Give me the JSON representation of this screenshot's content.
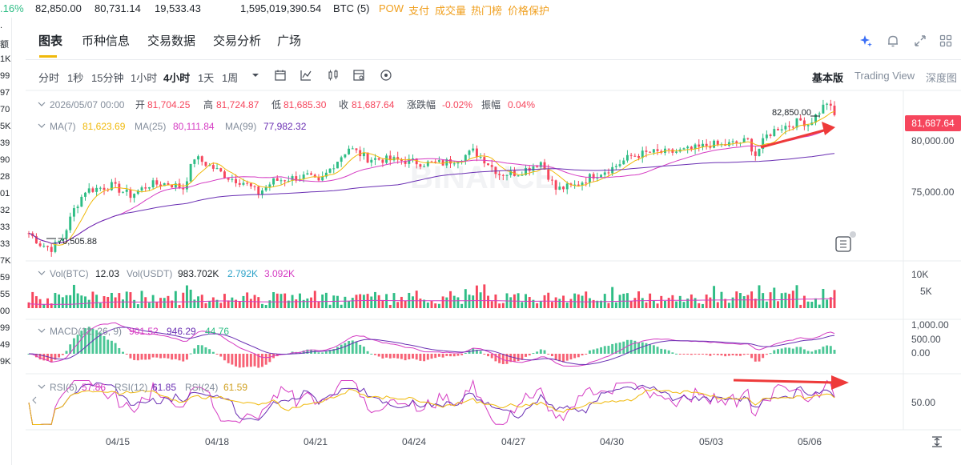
{
  "ticker": {
    "change_pct": ".16%",
    "high": "82,850.00",
    "low": "80,731.14",
    "volume_btc": "19,533.43",
    "volume_usdt": "1,595,019,390.54",
    "network": "BTC (5)",
    "tags": [
      "POW",
      "支付",
      "成交量",
      "热门榜",
      "价格保护"
    ],
    "tag_color": "#f0a020"
  },
  "left_strip": [
    ".",
    "额",
    "1K",
    "99",
    "97",
    "70",
    "5K",
    "39",
    "90",
    "28",
    "01",
    "32",
    "33",
    "33",
    "7K",
    "59",
    "55",
    "00",
    "99",
    "49",
    "9K"
  ],
  "tabs": [
    {
      "label": "图表",
      "active": true
    },
    {
      "label": "币种信息",
      "active": false
    },
    {
      "label": "交易数据",
      "active": false
    },
    {
      "label": "交易分析",
      "active": false
    },
    {
      "label": "广场",
      "active": false
    }
  ],
  "tab_icons": [
    "sparkle-icon",
    "bell-icon",
    "expand-icon",
    "grid-icon"
  ],
  "intervals": [
    {
      "label": "分时",
      "selected": false
    },
    {
      "label": "1秒",
      "selected": false
    },
    {
      "label": "15分钟",
      "selected": false
    },
    {
      "label": "1小时",
      "selected": false
    },
    {
      "label": "4小时",
      "selected": true
    },
    {
      "label": "1天",
      "selected": false
    },
    {
      "label": "1周",
      "selected": false
    }
  ],
  "toolbar_icons": [
    "dropdown-icon",
    "calendar-icon",
    "indicator-icon",
    "candle-icon",
    "layout-icon",
    "settings-icon"
  ],
  "views": {
    "basic": "基本版",
    "tradingview": "Trading View",
    "depth": "深度图"
  },
  "ohlc": {
    "date": "2026/05/07 00:00",
    "open_label": "开",
    "open": "81,704.25",
    "high_label": "高",
    "high": "81,724.87",
    "low_label": "低",
    "low": "81,685.30",
    "close_label": "收",
    "close": "81,687.64",
    "change_label": "涨跌幅",
    "change": "-0.02%",
    "amp_label": "振幅",
    "amp": "0.04%"
  },
  "ma": {
    "ma7_label": "MA(7)",
    "ma7": "81,623.69",
    "ma25_label": "MA(25)",
    "ma25": "80,111.84",
    "ma99_label": "MA(99)",
    "ma99": "77,982.32"
  },
  "vol": {
    "btc_label": "Vol(BTC)",
    "btc": "12.03",
    "usdt_label": "Vol(USDT)",
    "usdt": "983.702K",
    "v1": "2.792K",
    "v2": "3.092K"
  },
  "macd": {
    "label": "MACD(12, 26, 9)",
    "v1": "901.52",
    "v2": "946.29",
    "v3": "44.76"
  },
  "rsi": {
    "rsi6_label": "RSI(6)",
    "rsi6": "57.86",
    "rsi12_label": "RSI(12)",
    "rsi12": "61.85",
    "rsi24_label": "RSI(24)",
    "rsi24": "61.59"
  },
  "price_axis": [
    "80,000.00",
    "75,000.00"
  ],
  "current_price": "81,687.64",
  "max_price_label": "82,850.00",
  "min_price_label": "70,505.88",
  "vol_axis": [
    "10K",
    "5K"
  ],
  "macd_axis": [
    "1,000.00",
    "500.00",
    "0.00"
  ],
  "rsi_axis": [
    "50.00"
  ],
  "dates": [
    "04/15",
    "04/18",
    "04/21",
    "04/24",
    "04/27",
    "04/30",
    "05/03",
    "05/06"
  ],
  "watermark": "BINANCE",
  "colors": {
    "up": "#2ebd85",
    "down": "#f6465d",
    "ma7": "#f0b90b",
    "ma25": "#d53cc3",
    "ma99": "#6a2fb3",
    "arrow": "#ee3a3a"
  },
  "chart_data": {
    "type": "candlestick",
    "anchors": [
      [
        0,
        71800
      ],
      [
        3,
        70900
      ],
      [
        6,
        70505.88
      ],
      [
        9,
        71400
      ],
      [
        12,
        73800
      ],
      [
        15,
        75400
      ],
      [
        22,
        75800
      ],
      [
        27,
        75000
      ],
      [
        32,
        75900
      ],
      [
        37,
        76000
      ],
      [
        41,
        75600
      ],
      [
        44,
        78200
      ],
      [
        49,
        77300
      ],
      [
        53,
        76500
      ],
      [
        57,
        76100
      ],
      [
        61,
        75200
      ],
      [
        65,
        76200
      ],
      [
        69,
        76400
      ],
      [
        74,
        76600
      ],
      [
        77,
        76000
      ],
      [
        81,
        77600
      ],
      [
        85,
        79000
      ],
      [
        90,
        78100
      ],
      [
        95,
        78000
      ],
      [
        100,
        77900
      ],
      [
        105,
        77700
      ],
      [
        110,
        77700
      ],
      [
        115,
        78200
      ],
      [
        118,
        78700
      ],
      [
        121,
        78000
      ],
      [
        125,
        76800
      ],
      [
        130,
        76900
      ],
      [
        136,
        77800
      ],
      [
        140,
        75500
      ],
      [
        145,
        75800
      ],
      [
        150,
        76700
      ],
      [
        155,
        77300
      ],
      [
        160,
        78300
      ],
      [
        165,
        78600
      ],
      [
        170,
        78600
      ],
      [
        175,
        78800
      ],
      [
        178,
        79000
      ],
      [
        181,
        79300
      ],
      [
        184,
        79200
      ],
      [
        188,
        79400
      ],
      [
        191,
        79600
      ],
      [
        193,
        78400
      ],
      [
        196,
        80000
      ],
      [
        199,
        80700
      ],
      [
        202,
        80900
      ],
      [
        205,
        81300
      ],
      [
        207,
        81000
      ],
      [
        209,
        81700
      ],
      [
        212,
        82850
      ],
      [
        214,
        81687.64
      ]
    ]
  }
}
